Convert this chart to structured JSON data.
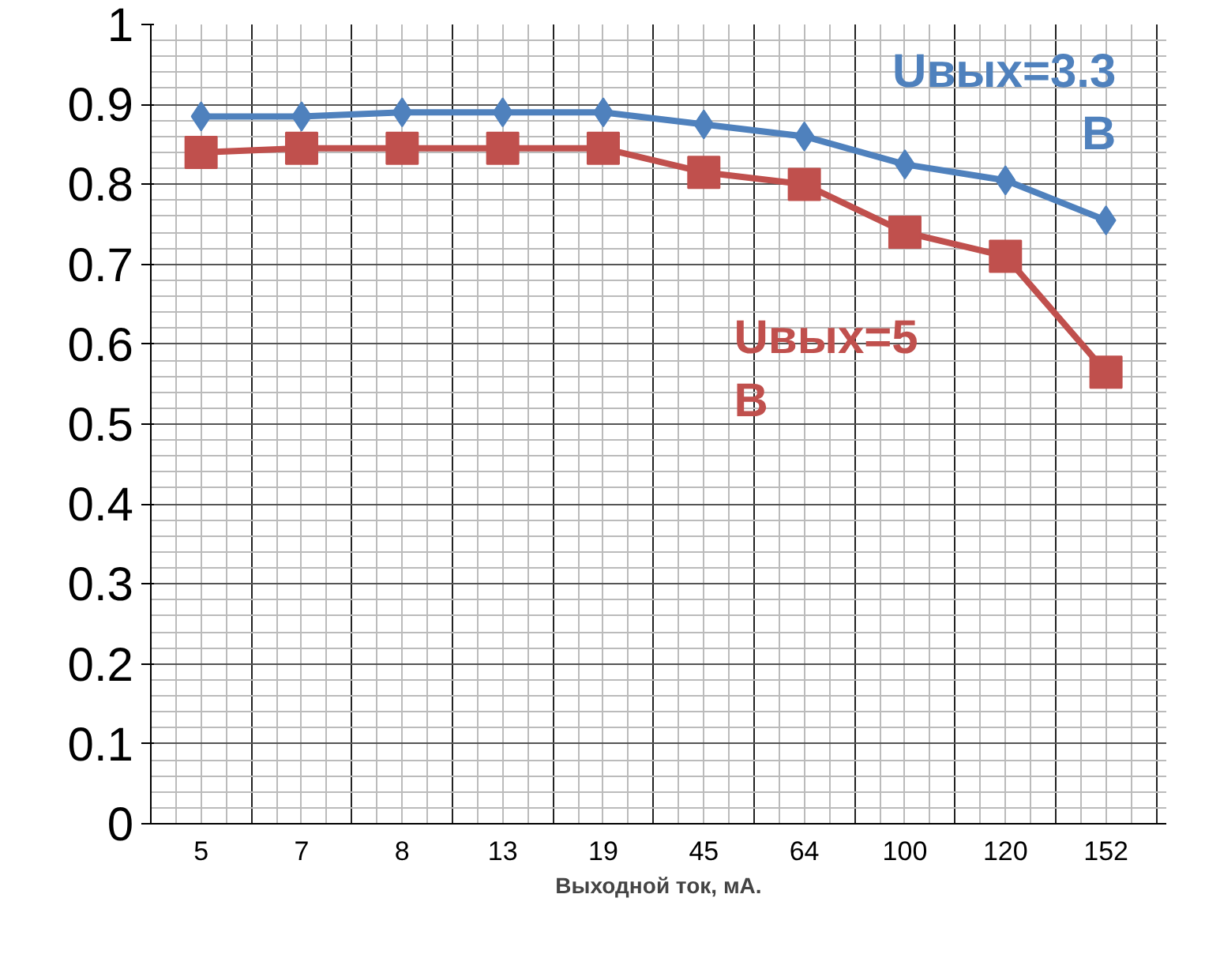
{
  "chart_data": {
    "type": "line",
    "xlabel": "Выходной ток, мА.",
    "categories": [
      "5",
      "7",
      "8",
      "13",
      "19",
      "45",
      "64",
      "100",
      "120",
      "152"
    ],
    "series": [
      {
        "name": "Uвых=3.3 В",
        "color": "#4f81bd",
        "marker": "diamond",
        "values": [
          0.885,
          0.885,
          0.89,
          0.89,
          0.89,
          0.875,
          0.86,
          0.825,
          0.805,
          0.755
        ]
      },
      {
        "name": "Uвых=5 В",
        "color": "#c0504d",
        "marker": "square",
        "values": [
          0.84,
          0.845,
          0.845,
          0.845,
          0.845,
          0.815,
          0.8,
          0.74,
          0.71,
          0.565
        ]
      }
    ],
    "ylim": [
      0,
      1
    ],
    "yticks": [
      0,
      0.1,
      0.2,
      0.3,
      0.4,
      0.5,
      0.6,
      0.7,
      0.8,
      0.9,
      1
    ],
    "grid": true,
    "legend": false
  }
}
